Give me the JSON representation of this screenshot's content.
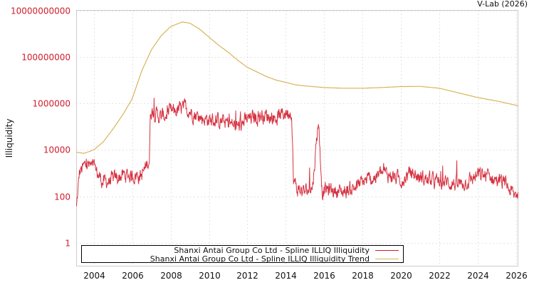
{
  "credit": "V-Lab (2026)",
  "chart_data": {
    "type": "line",
    "title": "",
    "xlabel": "",
    "ylabel": "Illiquidity",
    "yscale": "log",
    "ylim": [
      0.1,
      10000000000
    ],
    "xlim": [
      2003.1,
      2026.1
    ],
    "grid": true,
    "legend_position": "bottom-inside",
    "y_ticks": [
      {
        "value": 10000000000,
        "label": "10000000000"
      },
      {
        "value": 100000000,
        "label": "100000000"
      },
      {
        "value": 1000000,
        "label": "1000000"
      },
      {
        "value": 10000,
        "label": "10000"
      },
      {
        "value": 100,
        "label": "100"
      },
      {
        "value": 1,
        "label": "1"
      }
    ],
    "x_ticks": [
      2004,
      2006,
      2008,
      2010,
      2012,
      2014,
      2016,
      2018,
      2020,
      2022,
      2024,
      2026
    ],
    "series": [
      {
        "name": "Shanxi Antai Group Co Ltd - Spline ILLIQ Illiquidity",
        "color": "#d01c2c",
        "note": "approximate log10 levels read from chart; daily noisy series",
        "x": [
          2003.1,
          2003.25,
          2003.6,
          2004.0,
          2004.5,
          2005.0,
          2005.5,
          2006.0,
          2006.5,
          2006.9,
          2006.95,
          2007.5,
          2008.0,
          2008.8,
          2009.5,
          2010.0,
          2010.8,
          2011.5,
          2012.0,
          2012.8,
          2013.5,
          2014.0,
          2014.3,
          2014.4,
          2014.6,
          2015.0,
          2015.4,
          2015.7,
          2015.9,
          2016.2,
          2017.0,
          2017.6,
          2018.0,
          2018.6,
          2019.0,
          2019.5,
          2020.0,
          2020.5,
          2021.0,
          2021.5,
          2022.0,
          2022.5,
          2023.0,
          2023.6,
          2024.0,
          2024.5,
          2025.0,
          2025.5,
          2025.9,
          2026.1
        ],
        "log10y": [
          1.5,
          3.0,
          3.4,
          3.2,
          2.6,
          2.7,
          2.9,
          2.9,
          2.9,
          3.6,
          5.7,
          5.4,
          5.6,
          5.8,
          5.4,
          5.3,
          5.2,
          5.0,
          5.3,
          5.5,
          5.4,
          5.6,
          5.7,
          2.7,
          2.3,
          2.2,
          2.4,
          5.3,
          2.2,
          2.3,
          2.2,
          2.4,
          2.6,
          2.8,
          3.0,
          2.9,
          2.7,
          3.0,
          2.8,
          2.7,
          2.6,
          2.6,
          2.5,
          2.7,
          2.9,
          2.9,
          2.7,
          2.5,
          2.0,
          2.2
        ]
      },
      {
        "name": "Shanxi Antai Group Co Ltd - Spline ILLIQ Illiquidity Trend",
        "color": "#d8b45a",
        "x": [
          2003.1,
          2003.5,
          2004.0,
          2004.5,
          2005.0,
          2005.5,
          2006.0,
          2006.5,
          2007.0,
          2007.5,
          2008.0,
          2008.6,
          2009.0,
          2009.5,
          2010.0,
          2010.5,
          2011.0,
          2011.5,
          2012.0,
          2012.5,
          2013.0,
          2013.5,
          2014.0,
          2014.5,
          2015.0,
          2016.0,
          2017.0,
          2018.0,
          2019.0,
          2020.0,
          2021.0,
          2022.0,
          2023.0,
          2024.0,
          2025.0,
          2026.1
        ],
        "log10y": [
          3.9,
          3.85,
          4.0,
          4.35,
          4.9,
          5.5,
          6.2,
          7.4,
          8.3,
          8.9,
          9.3,
          9.5,
          9.45,
          9.2,
          8.85,
          8.5,
          8.2,
          7.85,
          7.55,
          7.35,
          7.15,
          7.0,
          6.9,
          6.8,
          6.75,
          6.68,
          6.65,
          6.65,
          6.68,
          6.72,
          6.73,
          6.65,
          6.45,
          6.25,
          6.1,
          5.9
        ]
      }
    ]
  },
  "legend": {
    "items": [
      {
        "label": "Shanxi Antai Group Co Ltd - Spline ILLIQ Illiquidity",
        "color": "#d01c2c"
      },
      {
        "label": "Shanxi Antai Group Co Ltd - Spline ILLIQ Illiquidity Trend",
        "color": "#d8b45a"
      }
    ]
  }
}
